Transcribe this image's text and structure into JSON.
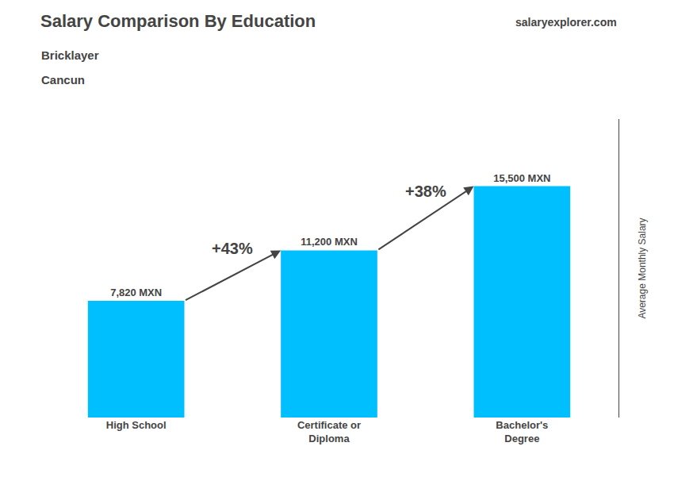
{
  "chart_data": {
    "type": "bar",
    "title": "Salary Comparison By Education",
    "subtitle": [
      "Bricklayer",
      "Cancun"
    ],
    "ylabel": "Average Monthly Salary",
    "categories": [
      "High School",
      "Certificate or\nDiploma",
      "Bachelor's\nDegree"
    ],
    "values": [
      7820,
      11200,
      15500
    ],
    "value_labels": [
      "7,820 MXN",
      "11,200 MXN",
      "15,500 MXN"
    ],
    "data_labels": true,
    "color": "#00BFFF",
    "ylim": [
      0,
      20000
    ],
    "tick_labels": "x",
    "grid": false,
    "annotations": [
      "+43%",
      "+38%"
    ],
    "watermark": "salaryexplorer.com"
  }
}
